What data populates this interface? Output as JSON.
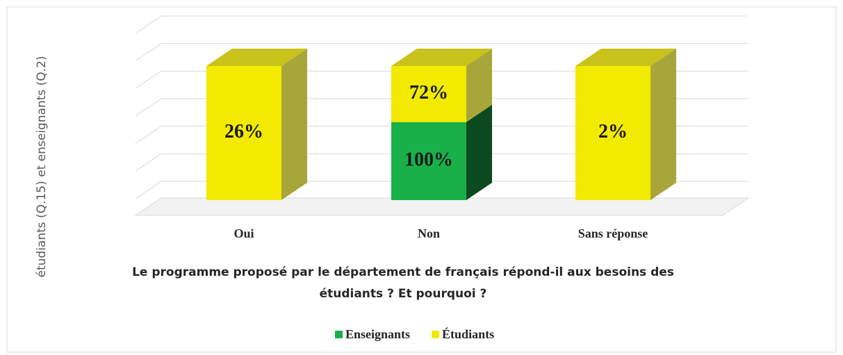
{
  "chart_data": {
    "type": "bar3d",
    "stacking": "percent",
    "title": "Le programme proposé par le département de français répond-il aux besoins des étudiants ? Et pourquoi ?",
    "y_label": "étudiants (Q.15) et enseignants (Q.2)",
    "categories": [
      "Oui",
      "Non",
      "Sans réponse"
    ],
    "series": [
      {
        "name": "Enseignants",
        "color": "#19b04a",
        "values": [
          null,
          100,
          null
        ],
        "value_labels": [
          null,
          "100%",
          null
        ]
      },
      {
        "name": "Étudiants",
        "color": "#f2ea00",
        "values": [
          26,
          72,
          2
        ],
        "value_labels": [
          "26%",
          "72%",
          "2%"
        ]
      }
    ],
    "legend": "bottom"
  }
}
